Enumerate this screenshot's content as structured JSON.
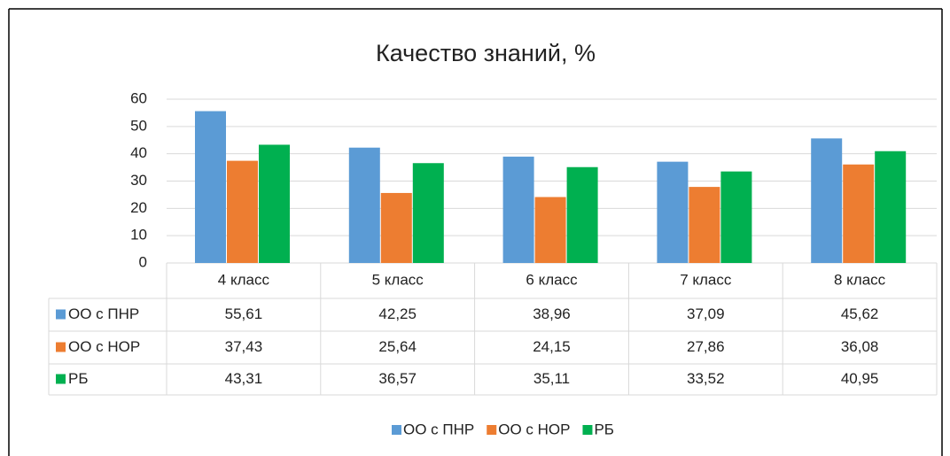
{
  "chart_data": {
    "type": "bar",
    "title": "Качество знаний, %",
    "categories": [
      "4 класс",
      "5 класс",
      "6 класс",
      "7 класс",
      "8 класс"
    ],
    "series": [
      {
        "name": "ОО с ПНР",
        "color": "#5b9bd5",
        "values": [
          55.61,
          42.25,
          38.96,
          37.09,
          45.62
        ],
        "value_labels": [
          "55,61",
          "42,25",
          "38,96",
          "37,09",
          "45,62"
        ]
      },
      {
        "name": "ОО с НОР",
        "color": "#ed7d31",
        "values": [
          37.43,
          25.64,
          24.15,
          27.86,
          36.08
        ],
        "value_labels": [
          "37,43",
          "25,64",
          "24,15",
          "27,86",
          "36,08"
        ]
      },
      {
        "name": "РБ",
        "color": "#00b050",
        "values": [
          43.31,
          36.57,
          35.11,
          33.52,
          40.95
        ],
        "value_labels": [
          "43,31",
          "36,57",
          "35,11",
          "33,52",
          "40,95"
        ]
      }
    ],
    "ylim": [
      0,
      60
    ],
    "yticks": [
      0,
      10,
      20,
      30,
      40,
      50,
      60
    ],
    "grid": true,
    "legend": "bottom"
  }
}
